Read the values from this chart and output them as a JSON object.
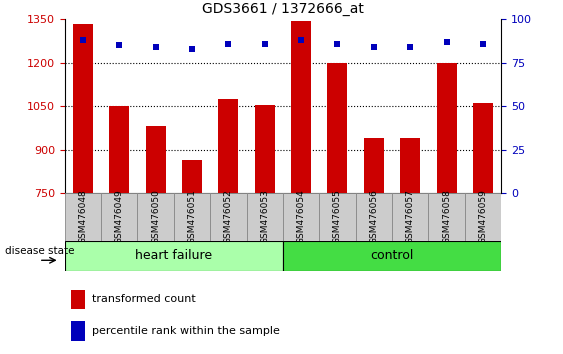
{
  "title": "GDS3661 / 1372666_at",
  "samples": [
    "GSM476048",
    "GSM476049",
    "GSM476050",
    "GSM476051",
    "GSM476052",
    "GSM476053",
    "GSM476054",
    "GSM476055",
    "GSM476056",
    "GSM476057",
    "GSM476058",
    "GSM476059"
  ],
  "transformed_counts": [
    1335,
    1052,
    980,
    865,
    1075,
    1055,
    1345,
    1200,
    940,
    940,
    1200,
    1060
  ],
  "percentile_ranks": [
    88,
    85,
    84,
    83,
    86,
    86,
    88,
    86,
    84,
    84,
    87,
    86
  ],
  "ylim_left": [
    750,
    1350
  ],
  "ylim_right": [
    0,
    100
  ],
  "yticks_left": [
    750,
    900,
    1050,
    1200,
    1350
  ],
  "yticks_right": [
    0,
    25,
    50,
    75,
    100
  ],
  "bar_color": "#CC0000",
  "dot_color": "#0000BB",
  "bg_color": "#FFFFFF",
  "grid_color": "#000000",
  "group_hf_color": "#AAFFAA",
  "group_ctrl_color": "#44DD44",
  "group_hf_label": "heart failure",
  "group_ctrl_label": "control",
  "disease_state_label": "disease state",
  "legend_bar_label": "transformed count",
  "legend_dot_label": "percentile rank within the sample",
  "tick_cell_color": "#CCCCCC",
  "tick_cell_edge": "#888888",
  "title_fontsize": 10,
  "label_fontsize": 8,
  "tick_fontsize": 7.5,
  "group_label_fontsize": 9
}
